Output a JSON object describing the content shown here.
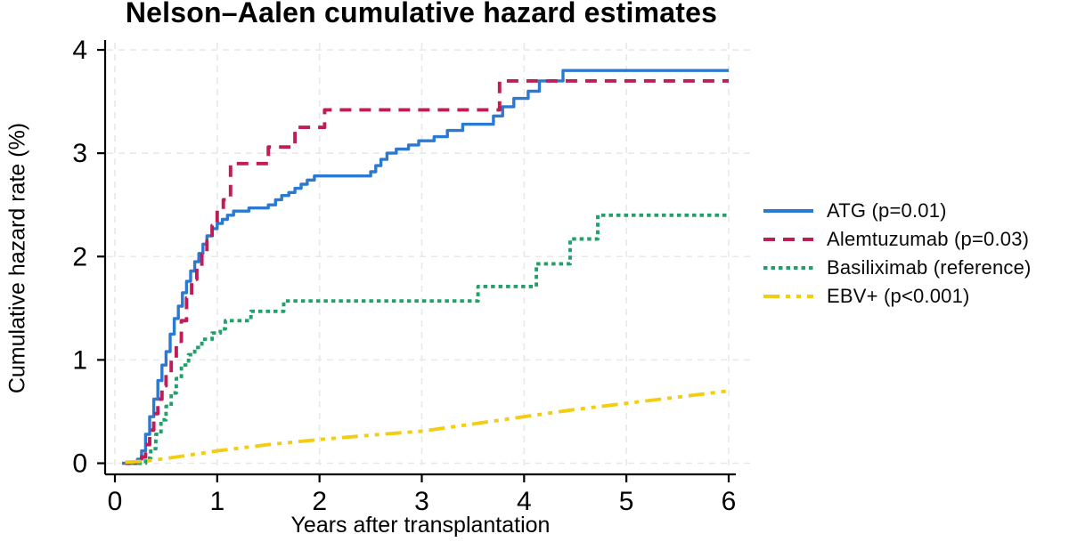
{
  "chart_data": {
    "type": "line",
    "title": "Nelson–Aalen cumulative hazard estimates",
    "xlabel": "Years after transplantation",
    "ylabel": "Cumulative hazard rate (%)",
    "xlim": [
      0,
      6
    ],
    "ylim": [
      0,
      4
    ],
    "xticks": [
      0,
      1,
      2,
      3,
      4,
      5,
      6
    ],
    "yticks": [
      0,
      1,
      2,
      3,
      4
    ],
    "grid": "dashed",
    "grid_color": "#e8e8e8",
    "axis_color": "#000000",
    "background_color": "#ffffff",
    "legend_position": "right",
    "series": [
      {
        "key": "atg",
        "name": "ATG (p=0.01)",
        "color": "#2b79d0",
        "line_style": "solid",
        "dash": "none",
        "curve": "step-after",
        "points": [
          [
            0.07,
            0
          ],
          [
            0.22,
            0.04
          ],
          [
            0.26,
            0.12
          ],
          [
            0.3,
            0.28
          ],
          [
            0.34,
            0.45
          ],
          [
            0.38,
            0.62
          ],
          [
            0.42,
            0.8
          ],
          [
            0.46,
            0.95
          ],
          [
            0.5,
            1.08
          ],
          [
            0.54,
            1.25
          ],
          [
            0.58,
            1.4
          ],
          [
            0.62,
            1.52
          ],
          [
            0.66,
            1.65
          ],
          [
            0.7,
            1.76
          ],
          [
            0.74,
            1.86
          ],
          [
            0.78,
            1.95
          ],
          [
            0.82,
            2.03
          ],
          [
            0.86,
            2.12
          ],
          [
            0.9,
            2.2
          ],
          [
            0.95,
            2.27
          ],
          [
            1.0,
            2.32
          ],
          [
            1.05,
            2.36
          ],
          [
            1.1,
            2.4
          ],
          [
            1.16,
            2.44
          ],
          [
            1.31,
            2.47
          ],
          [
            1.5,
            2.5
          ],
          [
            1.57,
            2.55
          ],
          [
            1.63,
            2.59
          ],
          [
            1.7,
            2.62
          ],
          [
            1.76,
            2.66
          ],
          [
            1.82,
            2.7
          ],
          [
            1.88,
            2.74
          ],
          [
            1.95,
            2.78
          ],
          [
            2.5,
            2.82
          ],
          [
            2.55,
            2.88
          ],
          [
            2.6,
            2.94
          ],
          [
            2.66,
            3.0
          ],
          [
            2.75,
            3.04
          ],
          [
            2.87,
            3.08
          ],
          [
            2.97,
            3.12
          ],
          [
            3.12,
            3.16
          ],
          [
            3.25,
            3.22
          ],
          [
            3.4,
            3.28
          ],
          [
            3.7,
            3.36
          ],
          [
            3.79,
            3.45
          ],
          [
            3.9,
            3.53
          ],
          [
            4.04,
            3.6
          ],
          [
            4.15,
            3.7
          ],
          [
            4.38,
            3.8
          ],
          [
            6.0,
            3.8
          ]
        ]
      },
      {
        "key": "alemtuzumab",
        "name": "Alemtuzumab (p=0.03)",
        "color": "#c01d56",
        "line_style": "dashed",
        "dash": "13 9",
        "curve": "step-after",
        "points": [
          [
            0.1,
            0
          ],
          [
            0.26,
            0.06
          ],
          [
            0.3,
            0.18
          ],
          [
            0.34,
            0.32
          ],
          [
            0.38,
            0.48
          ],
          [
            0.42,
            0.62
          ],
          [
            0.46,
            0.75
          ],
          [
            0.5,
            0.88
          ],
          [
            0.55,
            1.0
          ],
          [
            0.6,
            1.18
          ],
          [
            0.65,
            1.38
          ],
          [
            0.7,
            1.6
          ],
          [
            0.75,
            1.78
          ],
          [
            0.8,
            1.9
          ],
          [
            0.85,
            2.02
          ],
          [
            0.9,
            2.15
          ],
          [
            0.95,
            2.3
          ],
          [
            1.0,
            2.45
          ],
          [
            1.06,
            2.55
          ],
          [
            1.13,
            2.9
          ],
          [
            1.5,
            3.06
          ],
          [
            1.76,
            3.25
          ],
          [
            2.05,
            3.42
          ],
          [
            3.76,
            3.7
          ],
          [
            6.0,
            3.7
          ]
        ]
      },
      {
        "key": "basiliximab",
        "name": "Basiliximab (reference)",
        "color": "#21a06b",
        "line_style": "dotted",
        "dash": "4.5 4",
        "curve": "step-after",
        "points": [
          [
            0.15,
            0
          ],
          [
            0.3,
            0.05
          ],
          [
            0.35,
            0.14
          ],
          [
            0.4,
            0.28
          ],
          [
            0.45,
            0.42
          ],
          [
            0.5,
            0.55
          ],
          [
            0.55,
            0.68
          ],
          [
            0.6,
            0.82
          ],
          [
            0.65,
            0.95
          ],
          [
            0.72,
            1.05
          ],
          [
            0.78,
            1.12
          ],
          [
            0.85,
            1.2
          ],
          [
            0.95,
            1.26
          ],
          [
            1.03,
            1.3
          ],
          [
            1.08,
            1.38
          ],
          [
            1.33,
            1.47
          ],
          [
            1.65,
            1.57
          ],
          [
            3.55,
            1.71
          ],
          [
            4.12,
            1.93
          ],
          [
            4.45,
            2.17
          ],
          [
            4.72,
            2.4
          ],
          [
            6.0,
            2.4
          ]
        ]
      },
      {
        "key": "ebv",
        "name": "EBV+ (p<0.001)",
        "color": "#f2cd13",
        "line_style": "dash-dot-dot",
        "dash": "18 7 5 7 5 7",
        "curve": "linear",
        "points": [
          [
            0.1,
            0.01
          ],
          [
            0.3,
            0.02
          ],
          [
            0.6,
            0.06
          ],
          [
            1.0,
            0.12
          ],
          [
            1.5,
            0.18
          ],
          [
            2.0,
            0.23
          ],
          [
            2.6,
            0.28
          ],
          [
            3.0,
            0.31
          ],
          [
            3.5,
            0.38
          ],
          [
            4.0,
            0.45
          ],
          [
            4.5,
            0.52
          ],
          [
            5.0,
            0.58
          ],
          [
            5.5,
            0.64
          ],
          [
            6.0,
            0.7
          ]
        ]
      }
    ]
  }
}
